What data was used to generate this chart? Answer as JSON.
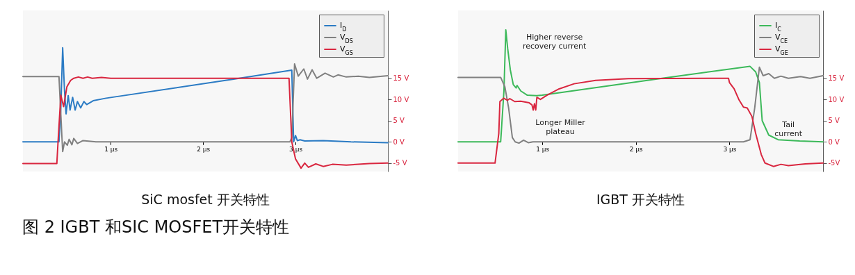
{
  "chart_data": [
    {
      "type": "line",
      "title": "SiC mosfet 开关特性",
      "annotations": [
        "图 2  IGBT 和SIC MOSFET开关特性"
      ],
      "xlim": [
        0.05,
        4.0
      ],
      "xticks": [
        {
          "value": 1,
          "label": "1 µs"
        },
        {
          "value": 2,
          "label": "2 µs"
        },
        {
          "value": 3,
          "label": "3 µs"
        }
      ],
      "ylim": [
        -7,
        31
      ],
      "yticks": [
        {
          "value": -5,
          "label": "-5 V"
        },
        {
          "value": 0,
          "label": "0 V"
        },
        {
          "value": 5,
          "label": "5 V"
        },
        {
          "value": 10,
          "label": "10 V"
        },
        {
          "value": 15,
          "label": "15 V"
        }
      ],
      "grid": false,
      "legend": "top right",
      "series": [
        {
          "name": "I$_{D}$",
          "color": "#2b7bc4",
          "x": [
            0.05,
            0.44,
            0.46,
            0.48,
            0.5,
            0.517,
            0.54,
            0.56,
            0.588,
            0.615,
            0.64,
            0.675,
            0.71,
            0.74,
            0.81,
            0.95,
            2.33,
            2.96,
            2.98,
            3.0,
            3.02,
            3.05,
            3.1,
            3.3,
            3.6,
            4.0
          ],
          "values": [
            0,
            0,
            8,
            22.2,
            12,
            6.6,
            10.9,
            7.5,
            10.5,
            7.5,
            9.5,
            8,
            9.5,
            8.8,
            9.7,
            10.3,
            14.8,
            16.9,
            0,
            1.5,
            0.3,
            0.5,
            0.2,
            0.3,
            0,
            -0.2
          ]
        },
        {
          "name": "V$_{DS}$",
          "color": "#808080",
          "x": [
            0.05,
            0.44,
            0.47,
            0.48,
            0.5,
            0.53,
            0.55,
            0.58,
            0.6,
            0.64,
            0.7,
            0.84,
            2.94,
            2.96,
            2.99,
            3.03,
            3.09,
            3.13,
            3.18,
            3.23,
            3.32,
            3.41,
            3.46,
            3.55,
            3.68,
            3.8,
            4.0
          ],
          "values": [
            15.4,
            15.4,
            2,
            -2.3,
            0,
            -0.8,
            0.6,
            -0.7,
            0.8,
            -0.4,
            0.3,
            0,
            0,
            1,
            18.4,
            15.5,
            17.2,
            14.8,
            17,
            15,
            16.2,
            15.3,
            15.8,
            15.3,
            15.5,
            15.2,
            15.6
          ]
        },
        {
          "name": "V$_{GS}$",
          "color": "#d9263f",
          "x": [
            0.05,
            0.417,
            0.43,
            0.46,
            0.49,
            0.526,
            0.566,
            0.6,
            0.65,
            0.7,
            0.75,
            0.8,
            0.9,
            1.0,
            1.5,
            2.0,
            2.5,
            2.93,
            2.96,
            3.0,
            3.06,
            3.1,
            3.14,
            3.22,
            3.3,
            3.4,
            3.55,
            3.8,
            4.0
          ],
          "values": [
            -5.1,
            -5.1,
            0,
            11,
            8.3,
            13,
            14.5,
            15,
            15.3,
            15,
            15.3,
            15,
            15.2,
            15,
            15,
            15,
            15,
            15,
            0,
            -4,
            -6.2,
            -5,
            -6,
            -5.2,
            -5.8,
            -5.3,
            -5.5,
            -5.1,
            -5
          ]
        }
      ]
    },
    {
      "type": "line",
      "title": "IGBT 开关特性",
      "annotations": [
        "Higher reverse\nrecovery current",
        "Longer Miller\nplateau",
        "Tail\ncurrent"
      ],
      "xlim": [
        0.1,
        4.0
      ],
      "xticks": [
        {
          "value": 1,
          "label": "1 µs"
        },
        {
          "value": 2,
          "label": "2 µs"
        },
        {
          "value": 3,
          "label": "3 µs"
        }
      ],
      "ylim": [
        -7,
        31
      ],
      "yticks": [
        {
          "value": -5,
          "label": "-5V"
        },
        {
          "value": 0,
          "label": "0 V"
        },
        {
          "value": 5,
          "label": "5 V"
        },
        {
          "value": 10,
          "label": "10 V"
        },
        {
          "value": 15,
          "label": "15 V"
        }
      ],
      "grid": false,
      "legend": "top right",
      "series": [
        {
          "name": "I$_{C}$",
          "color": "#3cb95a",
          "x": [
            0.1,
            0.555,
            0.59,
            0.61,
            0.63,
            0.658,
            0.69,
            0.72,
            0.73,
            0.77,
            0.84,
            0.94,
            1.0,
            2.28,
            3.22,
            3.28,
            3.32,
            3.35,
            3.42,
            3.52,
            3.75,
            4.0
          ],
          "values": [
            0,
            0,
            12,
            26.4,
            22,
            17,
            13.5,
            12.7,
            13.3,
            12,
            11,
            10.9,
            11,
            15,
            17.8,
            16.5,
            14,
            5,
            1.6,
            0.5,
            0.2,
            0
          ]
        },
        {
          "name": "V$_{CE}$",
          "color": "#808080",
          "x": [
            0.1,
            0.555,
            0.6,
            0.64,
            0.68,
            0.71,
            0.75,
            0.8,
            0.85,
            0.9,
            3.15,
            3.22,
            3.27,
            3.32,
            3.36,
            3.42,
            3.48,
            3.55,
            3.63,
            3.76,
            3.86,
            4.0
          ],
          "values": [
            15.2,
            15.2,
            13,
            8,
            1,
            0,
            -0.3,
            0.4,
            -0.2,
            0,
            0,
            0.5,
            8,
            17.6,
            15.6,
            16.1,
            15,
            15.5,
            15,
            15.4,
            15,
            15.6
          ]
        },
        {
          "name": "V$_{GE}$",
          "color": "#d9263f",
          "x": [
            0.1,
            0.495,
            0.535,
            0.547,
            0.587,
            0.627,
            0.653,
            0.705,
            0.77,
            0.86,
            0.89,
            0.903,
            0.916,
            0.93,
            0.942,
            0.98,
            1.05,
            1.18,
            1.34,
            1.57,
            1.92,
            2.99,
            3.0,
            3.05,
            3.1,
            3.15,
            3.19,
            3.24,
            3.28,
            3.34,
            3.38,
            3.47,
            3.55,
            3.63,
            3.81,
            4.0
          ],
          "values": [
            -5,
            -5,
            2,
            9.5,
            10.3,
            9.8,
            10.2,
            9.5,
            9.6,
            9.2,
            8.7,
            7.5,
            9,
            7.5,
            10.5,
            10,
            11,
            12.5,
            13.7,
            14.5,
            14.9,
            15,
            14,
            12.5,
            10,
            8.2,
            8,
            6,
            2,
            -3,
            -5,
            -5.8,
            -5.3,
            -5.6,
            -5.2,
            -5
          ]
        }
      ]
    }
  ]
}
